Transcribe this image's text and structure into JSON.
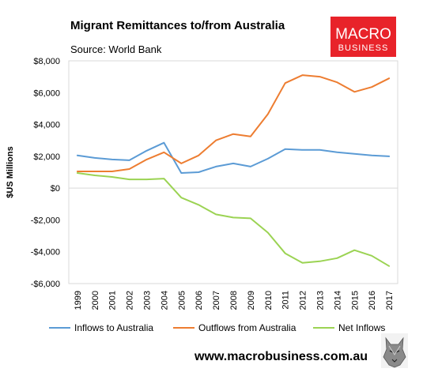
{
  "chart_data": {
    "type": "line",
    "title": "Migrant Remittances to/from Australia",
    "subtitle": "Source: World Bank",
    "ylabel": "$US Millions",
    "xlabel": "",
    "x": [
      "1999",
      "2000",
      "2001",
      "2002",
      "2003",
      "2004",
      "2005",
      "2006",
      "2007",
      "2008",
      "2009",
      "2010",
      "2011",
      "2012",
      "2013",
      "2014",
      "2015",
      "2016",
      "2017"
    ],
    "ylim": [
      -6000,
      8000
    ],
    "yticks": [
      8000,
      6000,
      4000,
      2000,
      0,
      -2000,
      -4000,
      -6000
    ],
    "ytick_labels": [
      "$8,000",
      "$6,000",
      "$4,000",
      "$2,000",
      "$0",
      "-$2,000",
      "-$4,000",
      "-$6,000"
    ],
    "grid": false,
    "legend_position": "bottom",
    "series": [
      {
        "name": "Inflows to Australia",
        "color": "#5b9bd5",
        "values": [
          2050,
          1900,
          1800,
          1750,
          2350,
          2850,
          950,
          1000,
          1350,
          1550,
          1350,
          1850,
          2450,
          2400,
          2400,
          2250,
          2150,
          2050,
          2000
        ]
      },
      {
        "name": "Outflows from Australia",
        "color": "#ed7d31",
        "values": [
          1050,
          1050,
          1050,
          1200,
          1800,
          2250,
          1550,
          2050,
          3000,
          3400,
          3250,
          4650,
          6600,
          7100,
          7000,
          6650,
          6050,
          6350,
          6900
        ]
      },
      {
        "name": "Net Inflows",
        "color": "#9bd353",
        "values": [
          950,
          800,
          700,
          550,
          550,
          600,
          -600,
          -1050,
          -1650,
          -1850,
          -1900,
          -2800,
          -4100,
          -4700,
          -4600,
          -4400,
          -3900,
          -4250,
          -4900
        ]
      }
    ]
  },
  "branding": {
    "logo_line1": "MACRO",
    "logo_line2": "BUSINESS",
    "logo_color": "#e8232a",
    "website": "www.macrobusiness.com.au"
  }
}
